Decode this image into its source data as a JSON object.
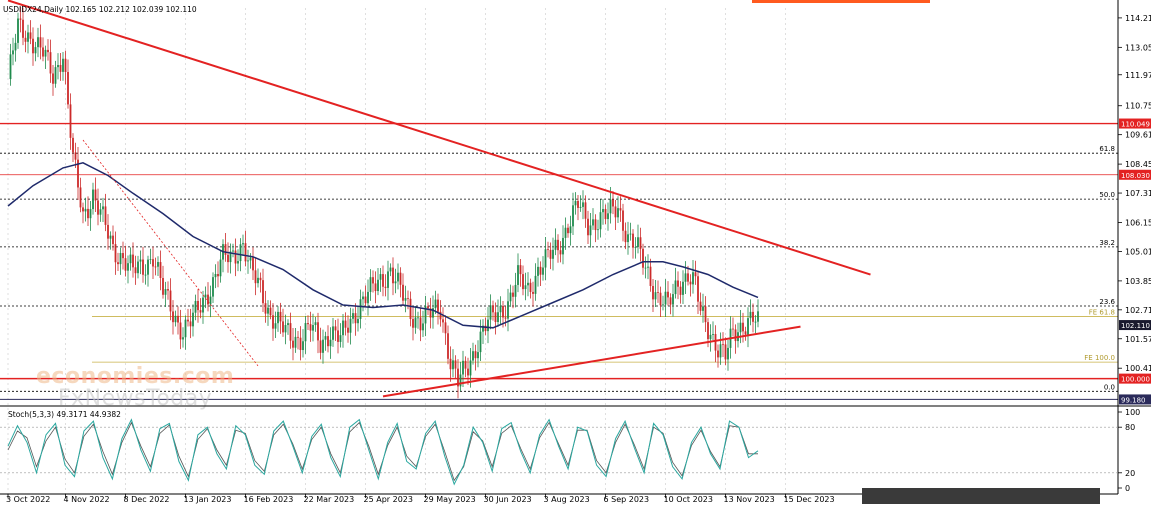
{
  "header": {
    "symbol_info": "USDIDX24,Daily  102.165 102.212 102.039 102.110"
  },
  "oscillator": {
    "title": "Stoch(5,3,3) 49.3171 44.9382",
    "levels": [
      100,
      80,
      20,
      0
    ],
    "ylim": [
      0,
      100
    ]
  },
  "watermark": {
    "line1": "economies.com",
    "line2": "FxNewsToday"
  },
  "colors": {
    "price_bull": "#1f8a4c",
    "price_bear": "#cc2a2a",
    "moving_average": "#1f2a6b",
    "trendline": "#e32222",
    "stoch_main": "#2aa8a0",
    "stoch_signal": "#555555",
    "current_price_label": "#1a1a2e",
    "support_label": "#e32222"
  },
  "chart_data": {
    "type": "line",
    "title": "",
    "ylim": [
      99.0,
      114.6
    ],
    "y_ticks": [
      "114.210",
      "113.050",
      "111.970",
      "110.750",
      "109.610",
      "108.450",
      "107.310",
      "106.150",
      "105.010",
      "103.850",
      "102.710",
      "101.570",
      "100.410"
    ],
    "y_tick_values": [
      114.21,
      113.05,
      111.97,
      110.75,
      109.61,
      108.45,
      107.31,
      106.15,
      105.01,
      103.85,
      102.71,
      101.57,
      100.41
    ],
    "x_ticks": [
      "3 Oct 2022",
      "4 Nov 2022",
      "8 Dec 2022",
      "13 Jan 2023",
      "16 Feb 2023",
      "22 Mar 2023",
      "25 Apr 2023",
      "29 May 2023",
      "30 Jun 2023",
      "3 Aug 2023",
      "6 Sep 2023",
      "10 Oct 2023",
      "13 Nov 2023",
      "15 Dec 2023"
    ],
    "x_tick_index": [
      0,
      23,
      47,
      71,
      95,
      119,
      143,
      167,
      191,
      215,
      239,
      263,
      287,
      311
    ],
    "price_path": [
      [
        0,
        111.8
      ],
      [
        4,
        113.8
      ],
      [
        9,
        113.5
      ],
      [
        14,
        112.8
      ],
      [
        18,
        111.9
      ],
      [
        22,
        112.9
      ],
      [
        26,
        108.6
      ],
      [
        30,
        106.4
      ],
      [
        34,
        107.3
      ],
      [
        38,
        106.2
      ],
      [
        42,
        105.1
      ],
      [
        46,
        104.8
      ],
      [
        50,
        104.2
      ],
      [
        54,
        104.4
      ],
      [
        58,
        104.9
      ],
      [
        62,
        103.4
      ],
      [
        66,
        102.6
      ],
      [
        70,
        101.9
      ],
      [
        74,
        102.3
      ],
      [
        78,
        103.1
      ],
      [
        82,
        103.8
      ],
      [
        86,
        104.7
      ],
      [
        90,
        104.9
      ],
      [
        94,
        105.3
      ],
      [
        97,
        104.2
      ],
      [
        101,
        103.6
      ],
      [
        105,
        102.5
      ],
      [
        109,
        102.0
      ],
      [
        113,
        101.7
      ],
      [
        117,
        101.6
      ],
      [
        121,
        102.0
      ],
      [
        125,
        101.4
      ],
      [
        129,
        101.9
      ],
      [
        133,
        101.5
      ],
      [
        137,
        102.3
      ],
      [
        141,
        103.0
      ],
      [
        145,
        103.4
      ],
      [
        149,
        103.9
      ],
      [
        153,
        104.3
      ],
      [
        157,
        103.4
      ],
      [
        161,
        102.6
      ],
      [
        165,
        102.3
      ],
      [
        169,
        102.5
      ],
      [
        173,
        102.8
      ],
      [
        177,
        100.7
      ],
      [
        180,
        99.8
      ],
      [
        184,
        100.5
      ],
      [
        188,
        101.5
      ],
      [
        192,
        102.2
      ],
      [
        196,
        102.6
      ],
      [
        200,
        103.0
      ],
      [
        204,
        103.9
      ],
      [
        208,
        103.5
      ],
      [
        212,
        104.3
      ],
      [
        216,
        104.7
      ],
      [
        220,
        105.2
      ],
      [
        224,
        106.1
      ],
      [
        228,
        106.8
      ],
      [
        232,
        106.1
      ],
      [
        236,
        106.3
      ],
      [
        240,
        106.4
      ],
      [
        244,
        106.8
      ],
      [
        248,
        105.6
      ],
      [
        252,
        105.0
      ],
      [
        256,
        104.2
      ],
      [
        260,
        103.2
      ],
      [
        264,
        102.8
      ],
      [
        268,
        103.8
      ],
      [
        272,
        104.1
      ],
      [
        275,
        103.6
      ],
      [
        277,
        102.6
      ],
      [
        281,
        101.9
      ],
      [
        284,
        101.2
      ],
      [
        287,
        100.8
      ],
      [
        290,
        101.8
      ],
      [
        294,
        102.2
      ],
      [
        298,
        102.3
      ],
      [
        300,
        102.11
      ]
    ],
    "moving_average_path": [
      [
        0,
        106.8
      ],
      [
        10,
        107.6
      ],
      [
        22,
        108.3
      ],
      [
        30,
        108.5
      ],
      [
        40,
        108.0
      ],
      [
        50,
        107.3
      ],
      [
        62,
        106.5
      ],
      [
        74,
        105.6
      ],
      [
        86,
        105.0
      ],
      [
        98,
        104.8
      ],
      [
        110,
        104.3
      ],
      [
        122,
        103.5
      ],
      [
        134,
        102.9
      ],
      [
        146,
        102.8
      ],
      [
        158,
        102.9
      ],
      [
        170,
        102.7
      ],
      [
        182,
        102.1
      ],
      [
        194,
        102.0
      ],
      [
        206,
        102.5
      ],
      [
        218,
        103.0
      ],
      [
        230,
        103.5
      ],
      [
        242,
        104.1
      ],
      [
        254,
        104.6
      ],
      [
        262,
        104.6
      ],
      [
        270,
        104.4
      ],
      [
        280,
        104.1
      ],
      [
        290,
        103.6
      ],
      [
        300,
        103.2
      ]
    ],
    "trendlines": [
      {
        "from": [
          0,
          114.9
        ],
        "to": [
          345,
          104.1
        ]
      },
      {
        "from": [
          150,
          99.3
        ],
        "to": [
          317,
          102.05
        ]
      },
      {
        "from": [
          30,
          109.4
        ],
        "to": [
          100,
          100.5
        ],
        "style": "dotted"
      }
    ],
    "horizontal_levels": [
      {
        "price": 110.049,
        "label": "110.049",
        "kind": "resistance"
      },
      {
        "price": 108.03,
        "label": "108.030",
        "kind": "resistance-thin"
      },
      {
        "price": 100.0,
        "label": "100.000",
        "kind": "support"
      },
      {
        "price": 99.18,
        "label": "99.180",
        "kind": "low"
      }
    ],
    "fib_levels": [
      {
        "price": 108.88,
        "label": "61.8"
      },
      {
        "price": 107.07,
        "label": "50.0"
      },
      {
        "price": 105.19,
        "label": "38.2"
      },
      {
        "price": 102.86,
        "label": "23.6"
      },
      {
        "price": 99.5,
        "label": "0.0"
      }
    ],
    "fe_levels": [
      {
        "price": 102.45,
        "label": "FE 61.8"
      },
      {
        "price": 100.65,
        "label": "FE 100.0"
      }
    ],
    "current_price": {
      "value": 102.11,
      "label": "102.110"
    },
    "stochastic_main": [
      55,
      82,
      60,
      20,
      70,
      85,
      30,
      15,
      75,
      88,
      40,
      12,
      65,
      90,
      50,
      22,
      78,
      85,
      35,
      10,
      70,
      80,
      45,
      25,
      82,
      70,
      30,
      18,
      75,
      88,
      55,
      20,
      68,
      84,
      40,
      15,
      80,
      90,
      50,
      12,
      60,
      85,
      35,
      25,
      72,
      88,
      42,
      5,
      30,
      80,
      60,
      22,
      78,
      86,
      48,
      20,
      70,
      90,
      55,
      25,
      80,
      75,
      30,
      15,
      65,
      88,
      52,
      20,
      85,
      70,
      28,
      12,
      60,
      80,
      45,
      25,
      88,
      80,
      40,
      49
    ],
    "stochastic_signal": [
      50,
      75,
      66,
      28,
      62,
      80,
      38,
      20,
      68,
      84,
      48,
      18,
      60,
      86,
      55,
      28,
      72,
      83,
      42,
      15,
      64,
      78,
      50,
      30,
      76,
      72,
      36,
      22,
      70,
      84,
      58,
      25,
      64,
      80,
      45,
      20,
      74,
      86,
      55,
      18,
      56,
      80,
      42,
      28,
      68,
      84,
      48,
      10,
      28,
      74,
      62,
      28,
      72,
      82,
      52,
      25,
      66,
      86,
      58,
      30,
      76,
      76,
      36,
      20,
      60,
      84,
      56,
      25,
      80,
      72,
      34,
      16,
      56,
      76,
      48,
      28,
      82,
      80,
      45,
      45
    ]
  }
}
